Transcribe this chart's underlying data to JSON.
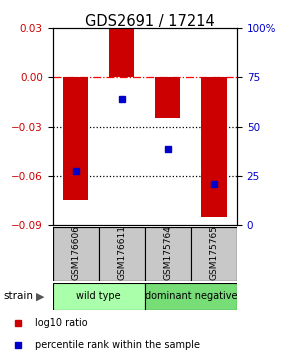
{
  "title": "GDS2691 / 17214",
  "categories": [
    "GSM176606",
    "GSM176611",
    "GSM175764",
    "GSM175765"
  ],
  "bar_values": [
    -0.075,
    0.03,
    -0.025,
    -0.085
  ],
  "blue_dot_values": [
    -0.057,
    -0.013,
    -0.044,
    -0.065
  ],
  "ylim_left": [
    -0.09,
    0.03
  ],
  "ylim_right": [
    0,
    100
  ],
  "yticks_left": [
    -0.09,
    -0.06,
    -0.03,
    0,
    0.03
  ],
  "yticks_right": [
    0,
    25,
    50,
    75,
    100
  ],
  "hlines_dotted": [
    -0.03,
    -0.06
  ],
  "zero_line": 0,
  "bar_color": "#cc0000",
  "dot_color": "#0000cc",
  "group_labels": [
    "wild type",
    "dominant negative"
  ],
  "group_ranges": [
    [
      0,
      2
    ],
    [
      2,
      4
    ]
  ],
  "group_colors": [
    "#aaffaa",
    "#77dd77"
  ],
  "label_color_left": "#cc0000",
  "label_color_right": "#0000cc",
  "legend_items": [
    {
      "color": "#cc0000",
      "label": "log10 ratio"
    },
    {
      "color": "#0000cc",
      "label": "percentile rank within the sample"
    }
  ],
  "strain_label": "strain",
  "bar_width": 0.55,
  "bg_color": "#ffffff"
}
